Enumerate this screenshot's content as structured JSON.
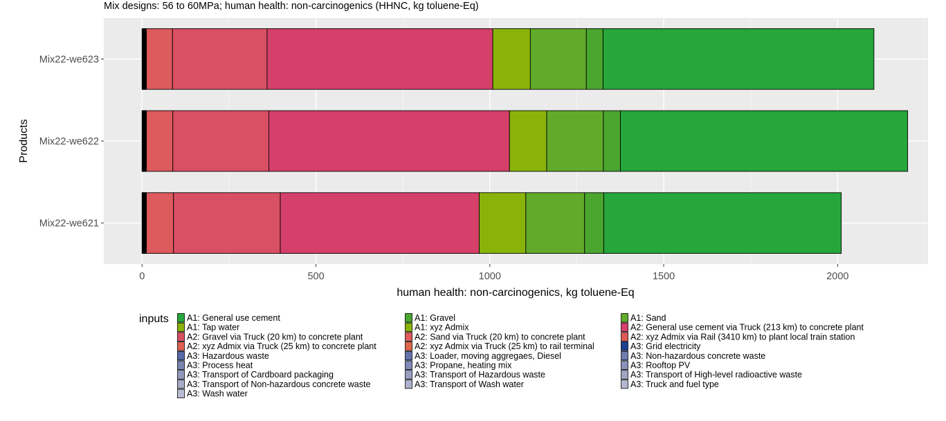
{
  "chart_data": {
    "type": "bar",
    "orientation": "horizontal",
    "stacked": true,
    "title": "Mix designs: 56 to 60MPa; human health: non-carcinogenics (HHNC, kg toluene-Eq)",
    "xlabel": "human health: non-carcinogenics, kg toluene-Eq",
    "ylabel": "Products",
    "xlim": [
      -110,
      2260
    ],
    "x_ticks": [
      0,
      500,
      1000,
      1500,
      2000
    ],
    "x_tick_labels": [
      "0",
      "500",
      "1000",
      "1500",
      "2000"
    ],
    "grid": true,
    "legend_title": "inputs",
    "legend_position": "bottom",
    "categories": [
      "Mix22-we623",
      "Mix22-we622",
      "Mix22-we621"
    ],
    "series": [
      {
        "name": "A3: Wash water",
        "color": "#b9bcd2",
        "values": [
          1,
          1,
          1
        ]
      },
      {
        "name": "A3: Truck and fuel type",
        "color": "#b4b7cf",
        "values": [
          1,
          1,
          1
        ]
      },
      {
        "name": "A3: Transport of Wash water",
        "color": "#adb1cb",
        "values": [
          0.5,
          0.5,
          0.5
        ]
      },
      {
        "name": "A3: Transport of Non-hazardous concrete waste",
        "color": "#a7abc8",
        "values": [
          0.5,
          0.5,
          0.5
        ]
      },
      {
        "name": "A3: Transport of High-level radioactive waste",
        "color": "#a0a5c4",
        "values": [
          0.5,
          0.5,
          0.5
        ]
      },
      {
        "name": "A3: Transport of Hazardous waste",
        "color": "#999fc1",
        "values": [
          0.5,
          0.5,
          0.5
        ]
      },
      {
        "name": "A3: Transport of Cardboard packaging",
        "color": "#9299bd",
        "values": [
          0.5,
          0.5,
          0.5
        ]
      },
      {
        "name": "A3: Rooftop PV",
        "color": "#8a92b9",
        "values": [
          0.5,
          0.5,
          0.5
        ]
      },
      {
        "name": "A3: Propane, heating mix",
        "color": "#828bb6",
        "values": [
          0.5,
          0.5,
          0.5
        ]
      },
      {
        "name": "A3: Process heat",
        "color": "#7a84b2",
        "values": [
          0.5,
          0.5,
          0.5
        ]
      },
      {
        "name": "A3: Non-hazardous concrete waste",
        "color": "#707cae",
        "values": [
          0.5,
          0.5,
          0.5
        ]
      },
      {
        "name": "A3: Loader, moving aggregaes, Diesel",
        "color": "#6573aa",
        "values": [
          0.5,
          0.5,
          0.5
        ]
      },
      {
        "name": "A3: Hazardous waste",
        "color": "#5769a6",
        "values": [
          0.5,
          0.5,
          0.5
        ]
      },
      {
        "name": "A3: Grid electricity",
        "color": "#1f3f8f",
        "values": [
          1,
          1,
          1
        ]
      },
      {
        "name": "A2: xyz Admix via Truck (25 km) to rail terminal",
        "color": "#e0664c",
        "values": [
          1,
          1,
          1
        ]
      },
      {
        "name": "A2: xyz Admix via Truck (25 km) to concrete plant",
        "color": "#de6050",
        "values": [
          1,
          1,
          1
        ]
      },
      {
        "name": "A2: xyz Admix via Rail (3410 km) to plant local train station",
        "color": "#dd5a57",
        "values": [
          2,
          2,
          2
        ]
      },
      {
        "name": "A2: Sand via Truck (20 km) to concrete plant",
        "color": "#dd5a5d",
        "values": [
          75,
          76,
          78
        ]
      },
      {
        "name": "A2: Gravel via Truck (20 km) to concrete plant",
        "color": "#d94f63",
        "values": [
          272,
          276,
          307
        ]
      },
      {
        "name": "A2: General use cement via Truck (213 km) to concrete plant",
        "color": "#d5406b",
        "values": [
          649,
          692,
          572
        ]
      },
      {
        "name": "A1: xyz Admix",
        "color": "#8ab30a",
        "values": [
          108,
          107,
          134
        ]
      },
      {
        "name": "A1: Tap water",
        "color": "#8ab30a",
        "values": [
          0,
          0,
          0
        ]
      },
      {
        "name": "A1: Sand",
        "color": "#62ab2a",
        "values": [
          161,
          163,
          169
        ]
      },
      {
        "name": "A1: Gravel",
        "color": "#4aa62f",
        "values": [
          48,
          49,
          55
        ]
      },
      {
        "name": "A1: General use cement",
        "color": "#27a63b",
        "values": [
          779,
          826,
          683
        ]
      }
    ],
    "legend_layout": [
      [
        "A1: General use cement",
        "A1: Gravel",
        "A1: Sand"
      ],
      [
        "A1: Tap water",
        "A1: xyz Admix",
        "A2: General use cement via Truck (213 km) to concrete plant"
      ],
      [
        "A2: Gravel via Truck (20 km) to concrete plant",
        "A2: Sand via Truck (20 km) to concrete plant",
        "A2: xyz Admix via Rail (3410 km) to plant local train station"
      ],
      [
        "A2: xyz Admix via Truck (25 km) to concrete plant",
        "A2: xyz Admix via Truck (25 km) to rail terminal",
        "A3: Grid electricity"
      ],
      [
        "A3: Hazardous waste",
        "A3: Loader, moving aggregaes, Diesel",
        "A3: Non-hazardous concrete waste"
      ],
      [
        "A3: Process heat",
        "A3: Propane, heating mix",
        "A3: Rooftop PV"
      ],
      [
        "A3: Transport of Cardboard packaging",
        "A3: Transport of Hazardous waste",
        "A3: Transport of High-level radioactive waste"
      ],
      [
        "A3: Transport of Non-hazardous concrete waste",
        "A3: Transport of Wash water",
        "A3: Truck and fuel type"
      ],
      [
        "A3: Wash water",
        "",
        ""
      ]
    ],
    "colors": {
      "panel_background": "#ebebeb",
      "grid_major": "#ffffff",
      "grid_minor": "#f5f5f5",
      "bar_outline": "#000000"
    }
  }
}
